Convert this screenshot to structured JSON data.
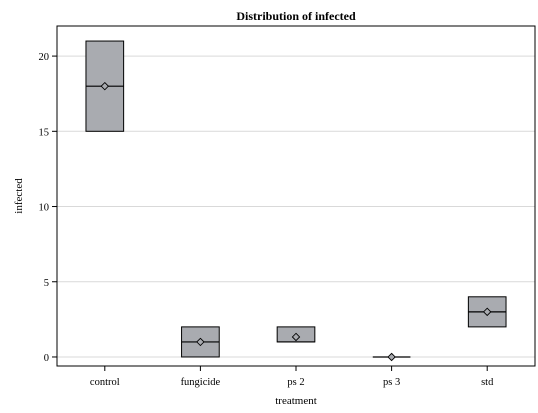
{
  "chart_data": {
    "type": "boxplot",
    "title": "Distribution of infected",
    "xlabel": "treatment",
    "ylabel": "infected",
    "categories": [
      "control",
      "fungicide",
      "ps 2",
      "ps 3",
      "std"
    ],
    "boxes": [
      {
        "q1": 15,
        "median": 18,
        "q3": 21,
        "mean": 18
      },
      {
        "q1": 0,
        "median": 1,
        "q3": 2,
        "mean": 1
      },
      {
        "q1": 1,
        "median": 1,
        "q3": 2,
        "mean": 1.33
      },
      {
        "q1": 0,
        "median": 0,
        "q3": 0,
        "mean": 0
      },
      {
        "q1": 2,
        "median": 3,
        "q3": 4,
        "mean": 3
      }
    ],
    "yticks": [
      0,
      5,
      10,
      15,
      20
    ],
    "ylim": [
      -0.6,
      22
    ],
    "grid": true,
    "colors": {
      "box_fill": "#a9abb0",
      "box_stroke": "#000000",
      "grid": "#d9d9d9",
      "frame": "#000000"
    }
  }
}
